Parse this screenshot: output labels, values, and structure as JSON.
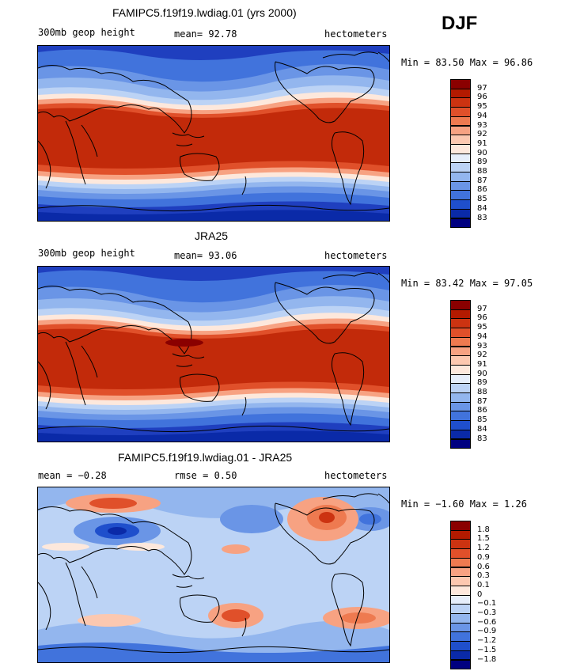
{
  "season": "DJF",
  "panels": [
    {
      "title": "FAMIPC5.f19f19.lwdiag.01 (yrs 2000)",
      "left_label": "300mb geop height",
      "mid_label": "mean=  92.78",
      "right_label": "hectometers",
      "minmax": "Min =  83.50 Max =  96.86",
      "kind": "field",
      "colorbar": {
        "labels": [
          "97",
          "96",
          "95",
          "94",
          "93",
          "92",
          "91",
          "90",
          "89",
          "88",
          "87",
          "86",
          "85",
          "84",
          "83"
        ],
        "colors": [
          "#8a0000",
          "#b31a00",
          "#cc3311",
          "#e0502a",
          "#ee7a50",
          "#f7a282",
          "#fcc8b0",
          "#fde8dc",
          "#e6eefa",
          "#bcd3f5",
          "#93b6ee",
          "#6a95e6",
          "#4173dc",
          "#1f4fcc",
          "#0a2aa8",
          "#000080"
        ]
      }
    },
    {
      "title": "JRA25",
      "left_label": "300mb geop height",
      "mid_label": "mean=  93.06",
      "right_label": "hectometers",
      "minmax": "Min =  83.42 Max =  97.05",
      "kind": "field",
      "colorbar": {
        "labels": [
          "97",
          "96",
          "95",
          "94",
          "93",
          "92",
          "91",
          "90",
          "89",
          "88",
          "87",
          "86",
          "85",
          "84",
          "83"
        ],
        "colors": [
          "#8a0000",
          "#b31a00",
          "#cc3311",
          "#e0502a",
          "#ee7a50",
          "#f7a282",
          "#fcc8b0",
          "#fde8dc",
          "#e6eefa",
          "#bcd3f5",
          "#93b6ee",
          "#6a95e6",
          "#4173dc",
          "#1f4fcc",
          "#0a2aa8",
          "#000080"
        ]
      }
    },
    {
      "title": "FAMIPC5.f19f19.lwdiag.01 - JRA25",
      "left_label": "mean =  −0.28",
      "mid_label": "rmse =    0.50",
      "right_label": "hectometers",
      "minmax": "Min =  −1.60 Max =   1.26",
      "kind": "diff",
      "colorbar": {
        "labels": [
          "1.8",
          "1.5",
          "1.2",
          "0.9",
          "0.6",
          "0.3",
          "0.1",
          "0",
          "−0.1",
          "−0.3",
          "−0.6",
          "−0.9",
          "−1.2",
          "−1.5",
          "−1.8"
        ],
        "colors": [
          "#8a0000",
          "#b31a00",
          "#cc3311",
          "#e0502a",
          "#ee7a50",
          "#f7a282",
          "#fcc8b0",
          "#fde8dc",
          "#e6eefa",
          "#bcd3f5",
          "#93b6ee",
          "#6a95e6",
          "#4173dc",
          "#1f4fcc",
          "#0a2aa8",
          "#000080"
        ]
      }
    }
  ],
  "colors": {
    "warm_core": "#c22a0a",
    "warm_mid": "#ee7a50",
    "pale": "#fde8dc",
    "cool_light": "#bcd3f5",
    "cool_mid": "#4173dc",
    "cool_deep": "#1f3fbf",
    "coast": "#000000"
  }
}
